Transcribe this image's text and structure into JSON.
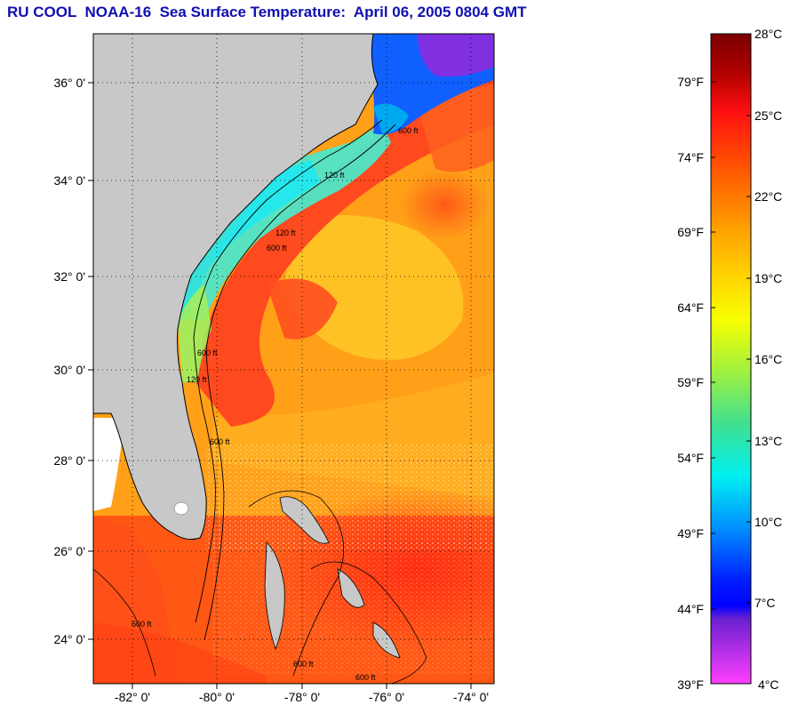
{
  "title": "RU COOL  NOAA-16  Sea Surface Temperature:  April 06, 2005 0804 GMT",
  "map": {
    "lat_labels": [
      "36° 0'",
      "34° 0'",
      "32° 0'",
      "30° 0'",
      "28° 0'",
      "26° 0'",
      "24° 0'"
    ],
    "lon_labels": [
      "-82° 0'",
      "-80° 0'",
      "-78° 0'",
      "-76° 0'",
      "-74° 0'"
    ],
    "contour_labels": [
      "600 ft",
      "120 ft",
      "600 ft",
      "120 ft",
      "600 ft",
      "120 ft",
      "600 ft",
      "600 ft",
      "600 ft",
      "600 ft"
    ],
    "colors": {
      "land": "#c8c8c8",
      "no_data": "#ffffff",
      "warm": "#ff3a10",
      "gulfstream": "#ff4a20",
      "mid": "#ffa020",
      "cool": "#40e0d0"
    }
  },
  "colorbar": {
    "celsius_labels": [
      "28°C",
      "25°C",
      "22°C",
      "19°C",
      "16°C",
      "13°C",
      "10°C",
      "7°C",
      "4°C"
    ],
    "fahrenheit_labels": [
      "79°F",
      "74°F",
      "69°F",
      "64°F",
      "59°F",
      "54°F",
      "49°F",
      "44°F",
      "39°F"
    ]
  }
}
